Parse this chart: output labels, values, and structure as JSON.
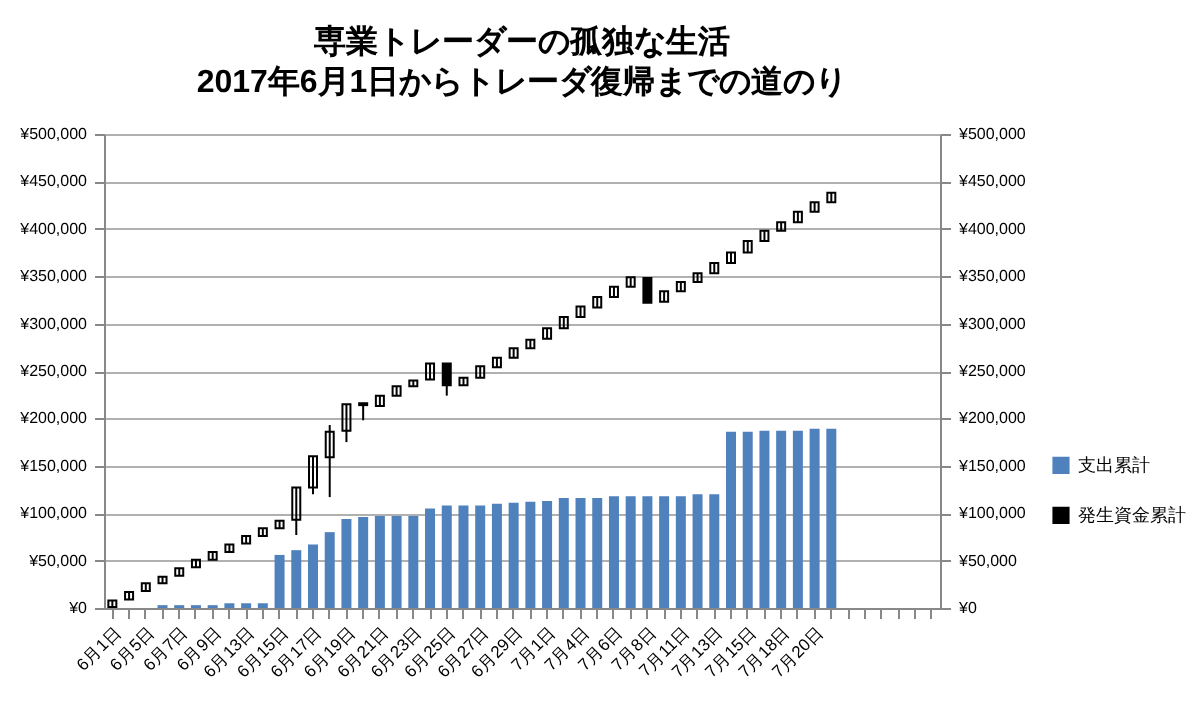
{
  "chart_data": {
    "type": "candlestick",
    "title": "専業トレーダーの孤独な生活",
    "subtitle": "2017年6月1日からトレーダ復帰までの道のり",
    "categories": [
      "6月1日",
      null,
      "6月5日",
      null,
      "6月7日",
      null,
      "6月9日",
      null,
      "6月13日",
      null,
      "6月15日",
      null,
      "6月17日",
      null,
      "6月19日",
      null,
      "6月21日",
      null,
      "6月23日",
      null,
      "6月25日",
      null,
      "6月27日",
      null,
      "6月29日",
      null,
      "7月1日",
      null,
      "7月4日",
      null,
      "7月6日",
      null,
      "7月8日",
      null,
      "7月11日",
      null,
      "7月13日",
      null,
      "7月15日",
      null,
      "7月18日",
      null,
      "7月20日",
      null,
      null,
      null,
      null,
      null,
      null,
      null
    ],
    "series": [
      {
        "name": "支出累計",
        "type": "bar",
        "color": "#4f81bd",
        "axis": "y2",
        "values": [
          null,
          null,
          null,
          3000,
          3000,
          3000,
          3000,
          5000,
          5000,
          5000,
          56000,
          61000,
          67000,
          80000,
          94000,
          96000,
          97000,
          97000,
          97000,
          105000,
          108000,
          108000,
          108000,
          110000,
          111000,
          112000,
          113000,
          116000,
          116000,
          116000,
          118000,
          118000,
          118000,
          118000,
          118000,
          120000,
          120000,
          186000,
          186000,
          187000,
          187000,
          187000,
          189000,
          189000,
          null,
          null,
          null,
          null,
          null,
          null
        ]
      },
      {
        "name": "発生資金累計",
        "color": "#000000",
        "ohlc": [
          [
            1000,
            8000,
            1000,
            8000
          ],
          [
            9000,
            17000,
            9000,
            17000
          ],
          [
            18000,
            26000,
            18000,
            26000
          ],
          [
            26000,
            33000,
            26000,
            33000
          ],
          [
            34000,
            42000,
            34000,
            42000
          ],
          [
            43000,
            51000,
            43000,
            51000
          ],
          [
            51000,
            59000,
            51000,
            59000
          ],
          [
            59000,
            67000,
            59000,
            67000
          ],
          [
            68000,
            76000,
            68000,
            76000
          ],
          [
            76000,
            84000,
            76000,
            84000
          ],
          [
            84000,
            92000,
            84000,
            92000
          ],
          [
            93000,
            127000,
            77000,
            127000
          ],
          [
            127000,
            160000,
            120000,
            160000
          ],
          [
            159000,
            193000,
            117000,
            186000
          ],
          [
            187000,
            215000,
            175000,
            215000
          ],
          [
            216000,
            216000,
            198000,
            214000
          ],
          [
            213000,
            224000,
            213000,
            224000
          ],
          [
            224000,
            234000,
            224000,
            234000
          ],
          [
            234000,
            240000,
            234000,
            240000
          ],
          [
            241000,
            258000,
            241000,
            258000
          ],
          [
            258000,
            258000,
            224000,
            235000
          ],
          [
            235000,
            243000,
            235000,
            243000
          ],
          [
            243000,
            255000,
            243000,
            255000
          ],
          [
            254000,
            264000,
            254000,
            264000
          ],
          [
            264000,
            274000,
            264000,
            274000
          ],
          [
            274000,
            283000,
            274000,
            283000
          ],
          [
            284000,
            295000,
            284000,
            295000
          ],
          [
            295000,
            307000,
            295000,
            307000
          ],
          [
            307000,
            318000,
            307000,
            318000
          ],
          [
            317000,
            328000,
            317000,
            328000
          ],
          [
            328000,
            339000,
            328000,
            339000
          ],
          [
            339000,
            349000,
            339000,
            349000
          ],
          [
            348000,
            348000,
            322000,
            322000
          ],
          [
            323000,
            334000,
            323000,
            334000
          ],
          [
            334000,
            344000,
            334000,
            344000
          ],
          [
            344000,
            353000,
            344000,
            353000
          ],
          [
            353000,
            364000,
            353000,
            364000
          ],
          [
            364000,
            375000,
            364000,
            375000
          ],
          [
            375000,
            387000,
            375000,
            387000
          ],
          [
            387000,
            398000,
            387000,
            398000
          ],
          [
            398000,
            407000,
            398000,
            407000
          ],
          [
            407000,
            418000,
            407000,
            418000
          ],
          [
            418000,
            428000,
            418000,
            428000
          ],
          [
            428000,
            438000,
            428000,
            438000
          ],
          null,
          null,
          null,
          null,
          null,
          null
        ]
      }
    ],
    "ylim": [
      0,
      500000
    ],
    "yticks": [
      {
        "value": 0,
        "label": "¥0"
      },
      {
        "value": 50000,
        "label": "¥50,000"
      },
      {
        "value": 100000,
        "label": "¥100,000"
      },
      {
        "value": 150000,
        "label": "¥150,000"
      },
      {
        "value": 200000,
        "label": "¥200,000"
      },
      {
        "value": 250000,
        "label": "¥250,000"
      },
      {
        "value": 300000,
        "label": "¥300,000"
      },
      {
        "value": 350000,
        "label": "¥350,000"
      },
      {
        "value": 400000,
        "label": "¥400,000"
      },
      {
        "value": 450000,
        "label": "¥450,000"
      },
      {
        "value": 500000,
        "label": "¥500,000"
      }
    ],
    "y2lim": [
      0,
      500000
    ],
    "y2ticks": [
      {
        "value": 0,
        "label": "¥0"
      },
      {
        "value": 50000,
        "label": "¥50,000"
      },
      {
        "value": 100000,
        "label": "¥100,000"
      },
      {
        "value": 150000,
        "label": "¥150,000"
      },
      {
        "value": 200000,
        "label": "¥200,000"
      },
      {
        "value": 250000,
        "label": "¥250,000"
      },
      {
        "value": 300000,
        "label": "¥300,000"
      },
      {
        "value": 350000,
        "label": "¥350,000"
      },
      {
        "value": 400000,
        "label": "¥400,000"
      },
      {
        "value": 450000,
        "label": "¥450,000"
      },
      {
        "value": 500000,
        "label": "¥500,000"
      }
    ],
    "grid": "y",
    "legend": "right"
  }
}
